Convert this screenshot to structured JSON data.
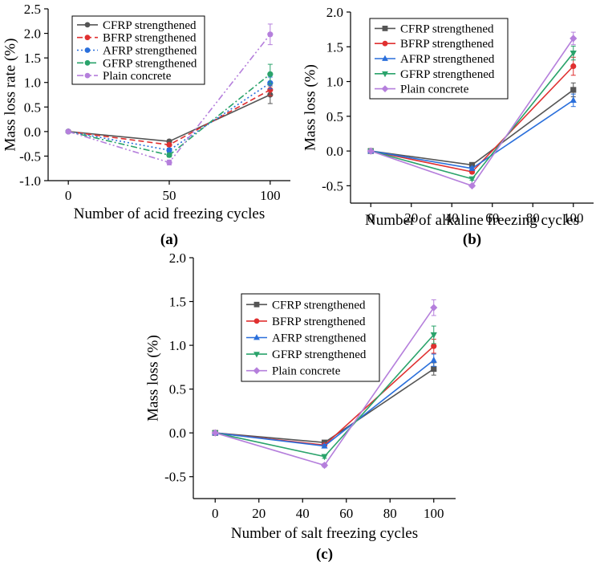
{
  "chart_data": [
    {
      "type": "line",
      "panel_label": "(a)",
      "xlabel": "Number of acid freezing cycles",
      "ylabel": "Mass loss rate (%)",
      "xlim": [
        -10,
        110
      ],
      "ylim": [
        -1.0,
        2.5
      ],
      "xticks": [
        0,
        50,
        100
      ],
      "yticks": [
        -1.0,
        -0.5,
        0.0,
        0.5,
        1.0,
        1.5,
        2.0,
        2.5
      ],
      "ytick_labels": [
        "-1.0",
        "-0.5",
        "0.0",
        "0.5",
        "1.0",
        "1.5",
        "2.0",
        "2.5"
      ],
      "legend_position": "top-left",
      "x": [
        0,
        50,
        100
      ],
      "series": [
        {
          "name": "CFRP strengthened",
          "values": [
            0,
            -0.2,
            0.75
          ],
          "errors": [
            0,
            0.03,
            0.18
          ],
          "color": "#555555",
          "marker": "circle",
          "dash": "solid"
        },
        {
          "name": "BFRP strengthened",
          "values": [
            0,
            -0.27,
            0.85
          ],
          "errors": [
            0,
            0.03,
            0.12
          ],
          "color": "#e03030",
          "marker": "circle",
          "dash": "dash"
        },
        {
          "name": "AFRP strengthened",
          "values": [
            0,
            -0.38,
            0.99
          ],
          "errors": [
            0,
            0.04,
            0.12
          ],
          "color": "#2a6fdb",
          "marker": "circle",
          "dash": "dot"
        },
        {
          "name": "GFRP strengthened",
          "values": [
            0,
            -0.48,
            1.17
          ],
          "errors": [
            0,
            0.04,
            0.2
          ],
          "color": "#2aa36b",
          "marker": "circle",
          "dash": "dashdot"
        },
        {
          "name": "Plain concrete",
          "values": [
            0,
            -0.63,
            1.98
          ],
          "errors": [
            0,
            0.05,
            0.21
          ],
          "color": "#b57fdc",
          "marker": "circle",
          "dash": "dashdotdot"
        }
      ]
    },
    {
      "type": "line",
      "panel_label": "(b)",
      "xlabel": "Number of alkaline freezing cycles",
      "ylabel": "Mass loss (%)",
      "xlim": [
        -10,
        110
      ],
      "ylim": [
        -0.75,
        2.0
      ],
      "xticks": [
        0,
        20,
        40,
        60,
        80,
        100
      ],
      "yticks": [
        -0.5,
        0.0,
        0.5,
        1.0,
        1.5,
        2.0
      ],
      "ytick_labels": [
        "-0.5",
        "0.0",
        "0.5",
        "1.0",
        "1.5",
        "2.0"
      ],
      "legend_position": "top-left",
      "x": [
        0,
        50,
        100
      ],
      "series": [
        {
          "name": "CFRP strengthened",
          "values": [
            0,
            -0.2,
            0.88
          ],
          "errors": [
            0,
            0.02,
            0.1
          ],
          "color": "#555555",
          "marker": "square",
          "dash": "solid"
        },
        {
          "name": "BFRP strengthened",
          "values": [
            0,
            -0.3,
            1.22
          ],
          "errors": [
            0,
            0.02,
            0.13
          ],
          "color": "#e03030",
          "marker": "circle",
          "dash": "solid"
        },
        {
          "name": "AFRP strengthened",
          "values": [
            0,
            -0.25,
            0.73
          ],
          "errors": [
            0,
            0.02,
            0.09
          ],
          "color": "#2a6fdb",
          "marker": "triangle-up",
          "dash": "solid"
        },
        {
          "name": "GFRP strengthened",
          "values": [
            0,
            -0.4,
            1.41
          ],
          "errors": [
            0,
            0.02,
            0.1
          ],
          "color": "#2aa36b",
          "marker": "triangle-down",
          "dash": "solid"
        },
        {
          "name": "Plain concrete",
          "values": [
            0,
            -0.5,
            1.62
          ],
          "errors": [
            0,
            0.02,
            0.09
          ],
          "color": "#b57fdc",
          "marker": "diamond",
          "dash": "solid"
        }
      ]
    },
    {
      "type": "line",
      "panel_label": "(c)",
      "xlabel": "Number of salt freezing cycles",
      "ylabel": "Mass loss (%)",
      "xlim": [
        -10,
        110
      ],
      "ylim": [
        -0.75,
        2.0
      ],
      "xticks": [
        0,
        20,
        40,
        60,
        80,
        100
      ],
      "yticks": [
        -0.5,
        0.0,
        0.5,
        1.0,
        1.5,
        2.0
      ],
      "ytick_labels": [
        "-0.5",
        "0.0",
        "0.5",
        "1.0",
        "1.5",
        "2.0"
      ],
      "legend_position": "top-left",
      "x": [
        0,
        50,
        100
      ],
      "series": [
        {
          "name": "CFRP strengthened",
          "values": [
            0,
            -0.11,
            0.73
          ],
          "errors": [
            0,
            0.02,
            0.07
          ],
          "color": "#555555",
          "marker": "square",
          "dash": "solid"
        },
        {
          "name": "BFRP strengthened",
          "values": [
            0,
            -0.14,
            0.99
          ],
          "errors": [
            0,
            0.02,
            0.08
          ],
          "color": "#e03030",
          "marker": "circle",
          "dash": "solid"
        },
        {
          "name": "AFRP strengthened",
          "values": [
            0,
            -0.15,
            0.83
          ],
          "errors": [
            0,
            0.02,
            0.07
          ],
          "color": "#2a6fdb",
          "marker": "triangle-up",
          "dash": "solid"
        },
        {
          "name": "GFRP strengthened",
          "values": [
            0,
            -0.27,
            1.12
          ],
          "errors": [
            0,
            0.02,
            0.1
          ],
          "color": "#2aa36b",
          "marker": "triangle-down",
          "dash": "solid"
        },
        {
          "name": "Plain concrete",
          "values": [
            0,
            -0.37,
            1.43
          ],
          "errors": [
            0,
            0.02,
            0.09
          ],
          "color": "#b57fdc",
          "marker": "diamond",
          "dash": "solid"
        }
      ]
    }
  ]
}
